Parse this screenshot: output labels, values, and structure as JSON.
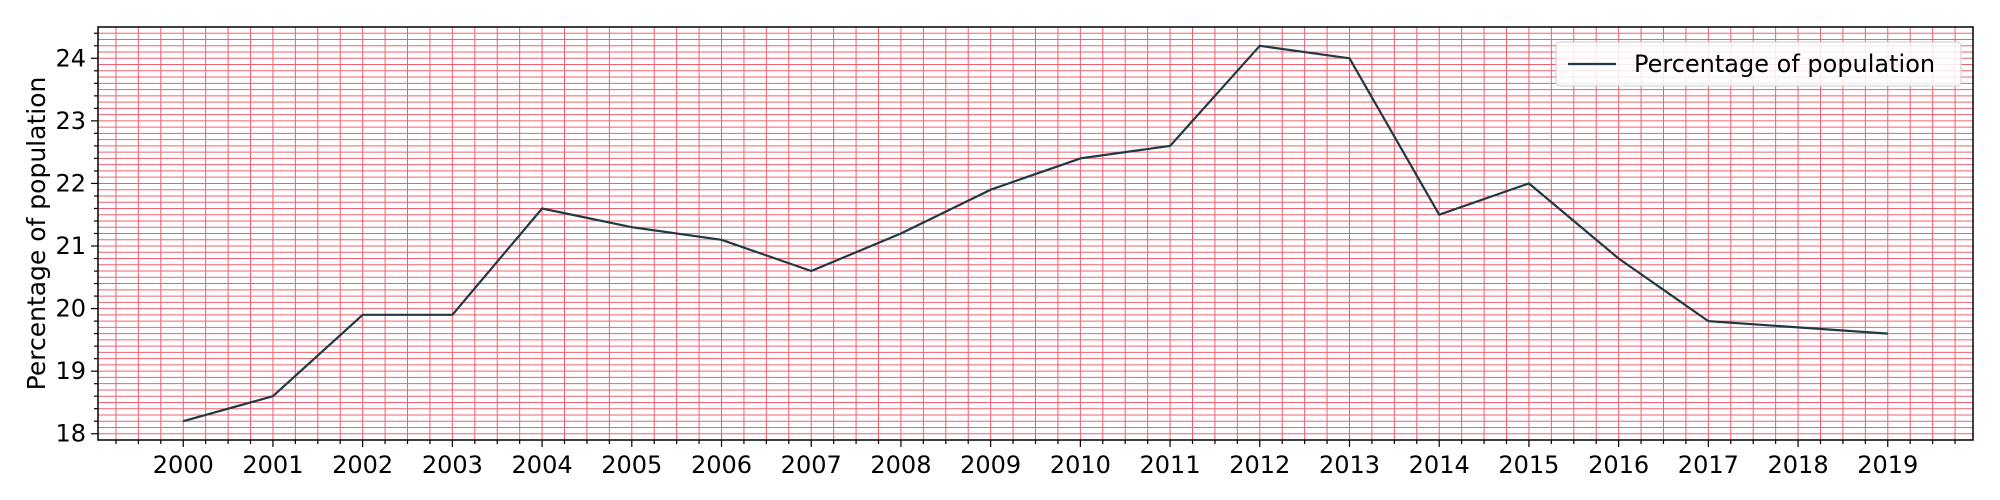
{
  "chart_data": {
    "type": "line",
    "title": "",
    "xlabel": "",
    "ylabel": "Percentage of population",
    "x": [
      2000,
      2001,
      2002,
      2003,
      2004,
      2005,
      2006,
      2007,
      2008,
      2009,
      2010,
      2011,
      2012,
      2013,
      2014,
      2015,
      2016,
      2017,
      2018,
      2019
    ],
    "series": [
      {
        "name": "Percentage of population",
        "color": "#1f3a44",
        "values": [
          18.2,
          18.6,
          19.9,
          19.9,
          21.6,
          21.3,
          21.1,
          20.6,
          21.2,
          21.9,
          22.4,
          22.6,
          24.2,
          24.0,
          21.5,
          22.0,
          20.8,
          19.8,
          19.7,
          19.6
        ]
      }
    ],
    "xlim": [
      1999.05,
      2019.95
    ],
    "ylim": [
      17.9,
      24.5
    ],
    "yticks": [
      18,
      19,
      20,
      21,
      22,
      23,
      24
    ],
    "grid": true,
    "grid_minor": true,
    "grid_color": "#f06070",
    "legend_position": "top-right"
  }
}
